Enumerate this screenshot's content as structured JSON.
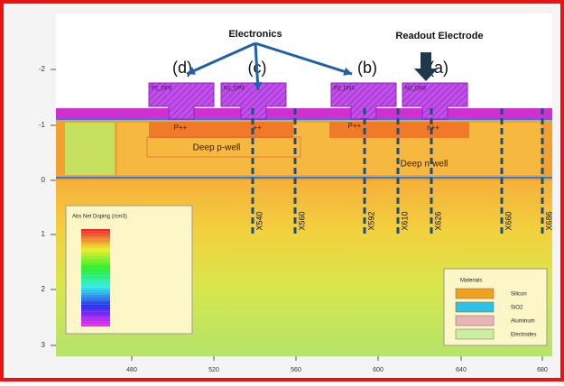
{
  "annotations": {
    "electronics": "Electronics",
    "readout": "Readout Electrode",
    "pad_labels": [
      "(d)",
      "(c)",
      "(b)",
      "(a)"
    ]
  },
  "contacts": [
    "P1_DP3",
    "N1_DP3",
    "P2_DN3",
    "N2_DN3"
  ],
  "regions": [
    "P++",
    "++",
    "P++",
    "n++",
    "Deep p-well",
    "Deep n-well"
  ],
  "cutlines": [
    "X540",
    "X560",
    "X592",
    "X610",
    "X626",
    "X660",
    "X686"
  ],
  "axes": {
    "y_ticks": [
      -2,
      -1,
      0,
      1,
      2,
      3
    ],
    "x_ticks": [
      480,
      520,
      560,
      600,
      640,
      680
    ]
  },
  "doping_legend": {
    "title": "Abs Net Doping (/cm3)"
  },
  "materials_legend": {
    "title": "Materials",
    "items": [
      "Silicon",
      "SiO2",
      "Aluminum",
      "Electrodes"
    ]
  }
}
